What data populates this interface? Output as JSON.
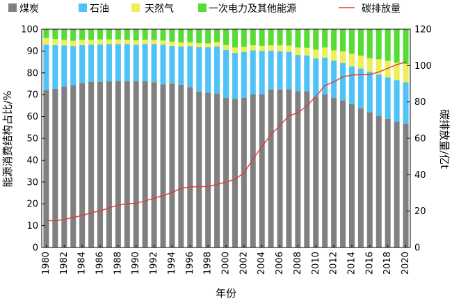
{
  "chart_data": {
    "type": "bar",
    "stacked": true,
    "xlabel": "年份",
    "ylabel_left": "能源消费结构占比/%",
    "ylabel_right": "碳排放量/亿t",
    "ylim_left": [
      0,
      100
    ],
    "ylim_right": [
      0,
      120
    ],
    "yticks_left": [
      "0",
      "10",
      "20",
      "30",
      "40",
      "50",
      "60",
      "70",
      "80",
      "90",
      "100"
    ],
    "yticks_right": [
      "0",
      "20",
      "40",
      "60",
      "80",
      "100",
      "120"
    ],
    "categories": [
      "1980",
      "1981",
      "1982",
      "1983",
      "1984",
      "1985",
      "1986",
      "1987",
      "1988",
      "1989",
      "1990",
      "1991",
      "1992",
      "1993",
      "1994",
      "1995",
      "1996",
      "1997",
      "1998",
      "1999",
      "2000",
      "2001",
      "2002",
      "2003",
      "2004",
      "2005",
      "2006",
      "2007",
      "2008",
      "2009",
      "2010",
      "2011",
      "2012",
      "2013",
      "2014",
      "2015",
      "2016",
      "2017",
      "2018",
      "2019",
      "2020"
    ],
    "xtick_labels": [
      "1980",
      "1982",
      "1984",
      "1986",
      "1988",
      "1990",
      "1992",
      "1994",
      "1996",
      "1998",
      "2000",
      "2002",
      "2004",
      "2006",
      "2008",
      "2010",
      "2012",
      "2014",
      "2016",
      "2018",
      "2020"
    ],
    "legend": {
      "position": "top",
      "entries": [
        "煤炭",
        "石油",
        "天然气",
        "一次电力及其他能源",
        "碳排放量"
      ]
    },
    "colors": {
      "coal": "#808080",
      "oil": "#4fc3f7",
      "gas": "#eeee55",
      "primary": "#55dd33",
      "carbon": "#e53935"
    },
    "series": [
      {
        "name": "煤炭",
        "values": [
          72.2,
          72.7,
          73.7,
          74.2,
          75.3,
          75.8,
          75.8,
          76.2,
          76.2,
          76.1,
          76.2,
          76.1,
          75.7,
          74.7,
          75.0,
          74.6,
          73.5,
          71.4,
          70.9,
          70.6,
          68.5,
          68.0,
          68.5,
          70.2,
          70.2,
          72.4,
          72.4,
          72.5,
          71.5,
          71.6,
          69.2,
          70.2,
          68.5,
          67.4,
          65.6,
          63.7,
          62.0,
          60.4,
          59.0,
          57.7,
          56.8
        ]
      },
      {
        "name": "石油",
        "values": [
          20.7,
          20.0,
          18.9,
          18.1,
          17.4,
          17.1,
          17.2,
          17.0,
          17.0,
          17.1,
          16.6,
          17.1,
          17.5,
          18.2,
          17.4,
          17.5,
          18.7,
          20.4,
          20.8,
          21.5,
          22.0,
          21.2,
          21.0,
          20.1,
          19.9,
          17.8,
          17.5,
          17.0,
          16.7,
          16.4,
          17.4,
          16.8,
          17.0,
          17.1,
          17.4,
          18.3,
          18.5,
          18.8,
          18.9,
          19.0,
          18.9
        ]
      },
      {
        "name": "天然气",
        "values": [
          3.1,
          2.8,
          2.5,
          2.4,
          2.4,
          2.2,
          2.3,
          2.1,
          2.1,
          2.0,
          2.1,
          2.0,
          1.9,
          1.9,
          1.9,
          1.8,
          1.8,
          1.8,
          1.8,
          2.0,
          2.2,
          2.4,
          2.4,
          2.3,
          2.3,
          2.4,
          2.7,
          3.0,
          3.4,
          3.5,
          4.0,
          4.6,
          4.8,
          5.3,
          5.7,
          5.9,
          6.2,
          7.0,
          7.6,
          8.0,
          8.4
        ]
      },
      {
        "name": "一次电力及其他能源",
        "values": [
          4.0,
          4.5,
          4.9,
          5.3,
          4.9,
          4.9,
          4.7,
          4.7,
          4.7,
          4.8,
          5.1,
          4.8,
          4.9,
          5.2,
          5.7,
          6.1,
          6.0,
          6.4,
          6.5,
          5.9,
          7.3,
          8.4,
          8.1,
          7.4,
          7.6,
          7.4,
          7.4,
          7.5,
          8.4,
          8.5,
          9.4,
          8.4,
          9.7,
          10.2,
          11.3,
          12.1,
          13.3,
          13.8,
          14.5,
          15.3,
          15.9
        ]
      }
    ],
    "line_series": {
      "name": "碳排放量",
      "axis": "right",
      "values": [
        14.8,
        14.7,
        15.4,
        16.5,
        17.6,
        19.1,
        20.2,
        21.7,
        23.3,
        24.1,
        24.3,
        25.6,
        27.0,
        28.6,
        30.2,
        32.5,
        33.3,
        33.4,
        33.5,
        34.7,
        36.0,
        37.5,
        41.0,
        48.5,
        55.5,
        62.0,
        67.0,
        72.5,
        74.0,
        78.0,
        83.0,
        89.0,
        91.0,
        93.8,
        94.8,
        95.0,
        95.0,
        96.5,
        98.5,
        100.5,
        102.0
      ]
    }
  }
}
